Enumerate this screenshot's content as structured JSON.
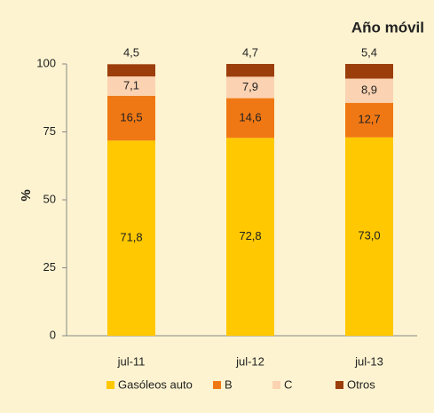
{
  "chart_data": {
    "type": "stacked_bar",
    "title": "Año móvil",
    "y_label": "%",
    "categories": [
      "jul-11",
      "jul-12",
      "jul-13"
    ],
    "series": [
      {
        "name": "Gasóleos auto",
        "color": "#ffc800",
        "values": [
          71.8,
          72.8,
          73.0
        ],
        "value_labels": [
          "71,8",
          "72,8",
          "73,0"
        ]
      },
      {
        "name": "B",
        "color": "#f07814",
        "values": [
          16.5,
          14.6,
          12.7
        ],
        "value_labels": [
          "16,5",
          "14,6",
          "12,7"
        ]
      },
      {
        "name": "C",
        "color": "#fcd3b2",
        "values": [
          7.1,
          7.9,
          8.9
        ],
        "value_labels": [
          "7,1",
          "7,9",
          "8,9"
        ]
      },
      {
        "name": "Otros",
        "color": "#9c3e0c",
        "values": [
          4.5,
          4.7,
          5.4
        ],
        "value_labels": [
          "4,5",
          "4,7",
          "5,4"
        ]
      }
    ],
    "ylim": [
      0,
      100
    ],
    "yticks": [
      0,
      25,
      50,
      75,
      100
    ]
  }
}
